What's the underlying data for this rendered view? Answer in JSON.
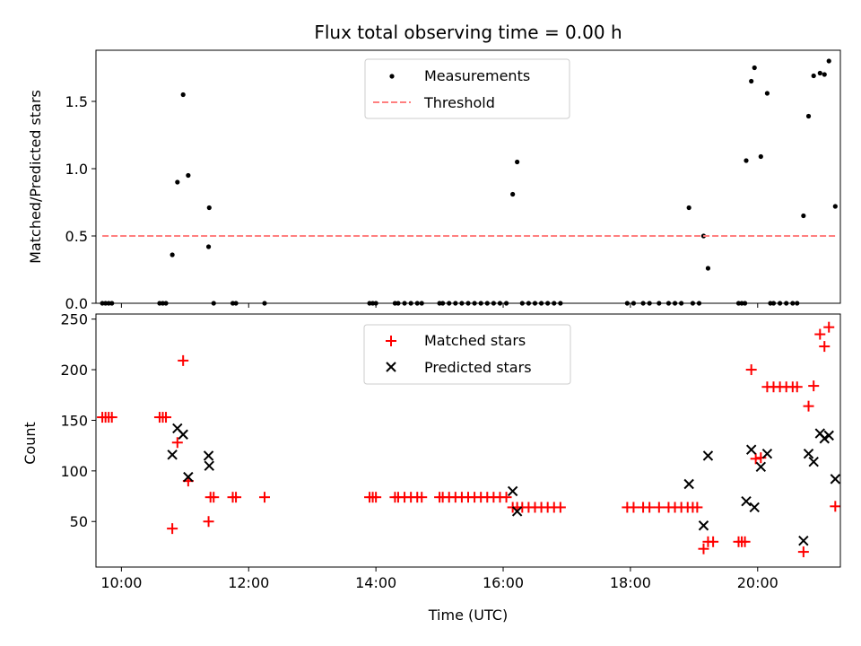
{
  "figure": {
    "title": "Flux total observing time = 0.00 h"
  },
  "chart_data": [
    {
      "type": "scatter",
      "title": "Flux total observing time = 0.00 h",
      "ylabel": "Matched/Predicted stars",
      "xlabel": "",
      "xlim": [
        9.6,
        21.3
      ],
      "ylim": [
        0,
        1.88
      ],
      "x_ticks": [
        10,
        12,
        14,
        16,
        18,
        20
      ],
      "x_ticklabels_visible": false,
      "y_ticks": [
        0.0,
        0.5,
        1.0,
        1.5
      ],
      "y_ticklabels": [
        "0.0",
        "0.5",
        "1.0",
        "1.5"
      ],
      "legend": {
        "position": "upper center",
        "entries": [
          "Measurements",
          "Threshold"
        ]
      },
      "series": [
        {
          "name": "Measurements",
          "marker": "dot",
          "color": "#000000",
          "points": [
            [
              9.7,
              0
            ],
            [
              9.75,
              0
            ],
            [
              9.8,
              0
            ],
            [
              9.85,
              0
            ],
            [
              10.6,
              0
            ],
            [
              10.65,
              0
            ],
            [
              10.7,
              0
            ],
            [
              10.8,
              0.36
            ],
            [
              10.88,
              0.9
            ],
            [
              10.97,
              1.55
            ],
            [
              11.05,
              0.95
            ],
            [
              11.37,
              0.42
            ],
            [
              11.38,
              0.71
            ],
            [
              11.45,
              0
            ],
            [
              11.75,
              0
            ],
            [
              11.8,
              0
            ],
            [
              12.25,
              0
            ],
            [
              13.9,
              0
            ],
            [
              13.95,
              0
            ],
            [
              14.0,
              0
            ],
            [
              14.3,
              0
            ],
            [
              14.35,
              0
            ],
            [
              14.45,
              0
            ],
            [
              14.55,
              0
            ],
            [
              14.65,
              0
            ],
            [
              14.72,
              0
            ],
            [
              15.0,
              0
            ],
            [
              15.05,
              0
            ],
            [
              15.15,
              0
            ],
            [
              15.25,
              0
            ],
            [
              15.35,
              0
            ],
            [
              15.45,
              0
            ],
            [
              15.55,
              0
            ],
            [
              15.65,
              0
            ],
            [
              15.75,
              0
            ],
            [
              15.85,
              0
            ],
            [
              15.95,
              0
            ],
            [
              16.05,
              0
            ],
            [
              16.15,
              0.81
            ],
            [
              16.22,
              1.05
            ],
            [
              16.3,
              0
            ],
            [
              16.4,
              0
            ],
            [
              16.5,
              0
            ],
            [
              16.6,
              0
            ],
            [
              16.7,
              0
            ],
            [
              16.8,
              0
            ],
            [
              16.9,
              0
            ],
            [
              17.95,
              0
            ],
            [
              18.05,
              0
            ],
            [
              18.2,
              0
            ],
            [
              18.3,
              0
            ],
            [
              18.45,
              0
            ],
            [
              18.6,
              0
            ],
            [
              18.7,
              0
            ],
            [
              18.8,
              0
            ],
            [
              18.92,
              0.71
            ],
            [
              18.98,
              0
            ],
            [
              19.08,
              0
            ],
            [
              19.15,
              0.5
            ],
            [
              19.22,
              0.26
            ],
            [
              19.7,
              0
            ],
            [
              19.75,
              0
            ],
            [
              19.8,
              0
            ],
            [
              19.82,
              1.06
            ],
            [
              19.9,
              1.65
            ],
            [
              19.95,
              1.75
            ],
            [
              20.05,
              1.09
            ],
            [
              20.15,
              1.56
            ],
            [
              20.2,
              0
            ],
            [
              20.25,
              0
            ],
            [
              20.35,
              0
            ],
            [
              20.45,
              0
            ],
            [
              20.55,
              0
            ],
            [
              20.62,
              0
            ],
            [
              20.72,
              0.65
            ],
            [
              20.8,
              1.39
            ],
            [
              20.88,
              1.69
            ],
            [
              20.98,
              1.71
            ],
            [
              21.05,
              1.7
            ],
            [
              21.12,
              1.8
            ],
            [
              21.22,
              0.72
            ]
          ]
        },
        {
          "name": "Threshold",
          "style": "dashed",
          "color": "#ff7f7f",
          "x": [
            9.7,
            21.22
          ],
          "y": [
            0.5,
            0.5
          ]
        }
      ]
    },
    {
      "type": "scatter",
      "title": "",
      "xlabel": "Time (UTC)",
      "ylabel": "Count",
      "xlim": [
        9.6,
        21.3
      ],
      "ylim": [
        5,
        255
      ],
      "x_ticks": [
        10,
        12,
        14,
        16,
        18,
        20
      ],
      "x_ticklabels": [
        "10:00",
        "12:00",
        "14:00",
        "16:00",
        "18:00",
        "20:00"
      ],
      "y_ticks": [
        50,
        100,
        150,
        200,
        250
      ],
      "y_ticklabels": [
        "50",
        "100",
        "150",
        "200",
        "250"
      ],
      "legend": {
        "position": "upper center",
        "entries": [
          "Matched stars",
          "Predicted stars"
        ]
      },
      "series": [
        {
          "name": "Matched stars",
          "marker": "plus",
          "color": "#ff0000",
          "points": [
            [
              9.7,
              153
            ],
            [
              9.75,
              153
            ],
            [
              9.8,
              153
            ],
            [
              9.85,
              153
            ],
            [
              10.6,
              153
            ],
            [
              10.65,
              153
            ],
            [
              10.7,
              153
            ],
            [
              10.8,
              43
            ],
            [
              10.88,
              128
            ],
            [
              10.97,
              209
            ],
            [
              11.05,
              90
            ],
            [
              11.37,
              50
            ],
            [
              11.4,
              74
            ],
            [
              11.45,
              74
            ],
            [
              11.75,
              74
            ],
            [
              11.8,
              74
            ],
            [
              12.25,
              74
            ],
            [
              13.9,
              74
            ],
            [
              13.95,
              74
            ],
            [
              14.0,
              74
            ],
            [
              14.3,
              74
            ],
            [
              14.35,
              74
            ],
            [
              14.45,
              74
            ],
            [
              14.55,
              74
            ],
            [
              14.65,
              74
            ],
            [
              14.72,
              74
            ],
            [
              15.0,
              74
            ],
            [
              15.05,
              74
            ],
            [
              15.15,
              74
            ],
            [
              15.25,
              74
            ],
            [
              15.35,
              74
            ],
            [
              15.45,
              74
            ],
            [
              15.55,
              74
            ],
            [
              15.65,
              74
            ],
            [
              15.75,
              74
            ],
            [
              15.85,
              74
            ],
            [
              15.95,
              74
            ],
            [
              16.05,
              74
            ],
            [
              16.15,
              64
            ],
            [
              16.22,
              64
            ],
            [
              16.3,
              64
            ],
            [
              16.4,
              64
            ],
            [
              16.5,
              64
            ],
            [
              16.6,
              64
            ],
            [
              16.7,
              64
            ],
            [
              16.8,
              64
            ],
            [
              16.9,
              64
            ],
            [
              17.95,
              64
            ],
            [
              18.05,
              64
            ],
            [
              18.2,
              64
            ],
            [
              18.3,
              64
            ],
            [
              18.45,
              64
            ],
            [
              18.6,
              64
            ],
            [
              18.7,
              64
            ],
            [
              18.8,
              64
            ],
            [
              18.9,
              64
            ],
            [
              18.98,
              64
            ],
            [
              19.05,
              64
            ],
            [
              19.15,
              23
            ],
            [
              19.22,
              30
            ],
            [
              19.3,
              30
            ],
            [
              19.7,
              30
            ],
            [
              19.75,
              30
            ],
            [
              19.8,
              30
            ],
            [
              19.9,
              200
            ],
            [
              19.97,
              112
            ],
            [
              20.05,
              113
            ],
            [
              20.15,
              183
            ],
            [
              20.25,
              183
            ],
            [
              20.35,
              183
            ],
            [
              20.45,
              183
            ],
            [
              20.55,
              183
            ],
            [
              20.62,
              183
            ],
            [
              20.72,
              20
            ],
            [
              20.8,
              164
            ],
            [
              20.88,
              184
            ],
            [
              20.98,
              235
            ],
            [
              21.05,
              223
            ],
            [
              21.12,
              242
            ],
            [
              21.22,
              65
            ]
          ]
        },
        {
          "name": "Predicted stars",
          "marker": "x",
          "color": "#000000",
          "points": [
            [
              10.8,
              116
            ],
            [
              10.88,
              142
            ],
            [
              10.97,
              136
            ],
            [
              11.05,
              94
            ],
            [
              11.37,
              115
            ],
            [
              11.38,
              105
            ],
            [
              16.15,
              80
            ],
            [
              16.22,
              60
            ],
            [
              18.92,
              87
            ],
            [
              19.15,
              46
            ],
            [
              19.22,
              115
            ],
            [
              19.82,
              70
            ],
            [
              19.9,
              121
            ],
            [
              19.95,
              64
            ],
            [
              20.05,
              104
            ],
            [
              20.15,
              117
            ],
            [
              20.72,
              31
            ],
            [
              20.8,
              117
            ],
            [
              20.88,
              109
            ],
            [
              20.98,
              137
            ],
            [
              21.05,
              132
            ],
            [
              21.12,
              135
            ],
            [
              21.22,
              92
            ]
          ]
        }
      ]
    }
  ]
}
